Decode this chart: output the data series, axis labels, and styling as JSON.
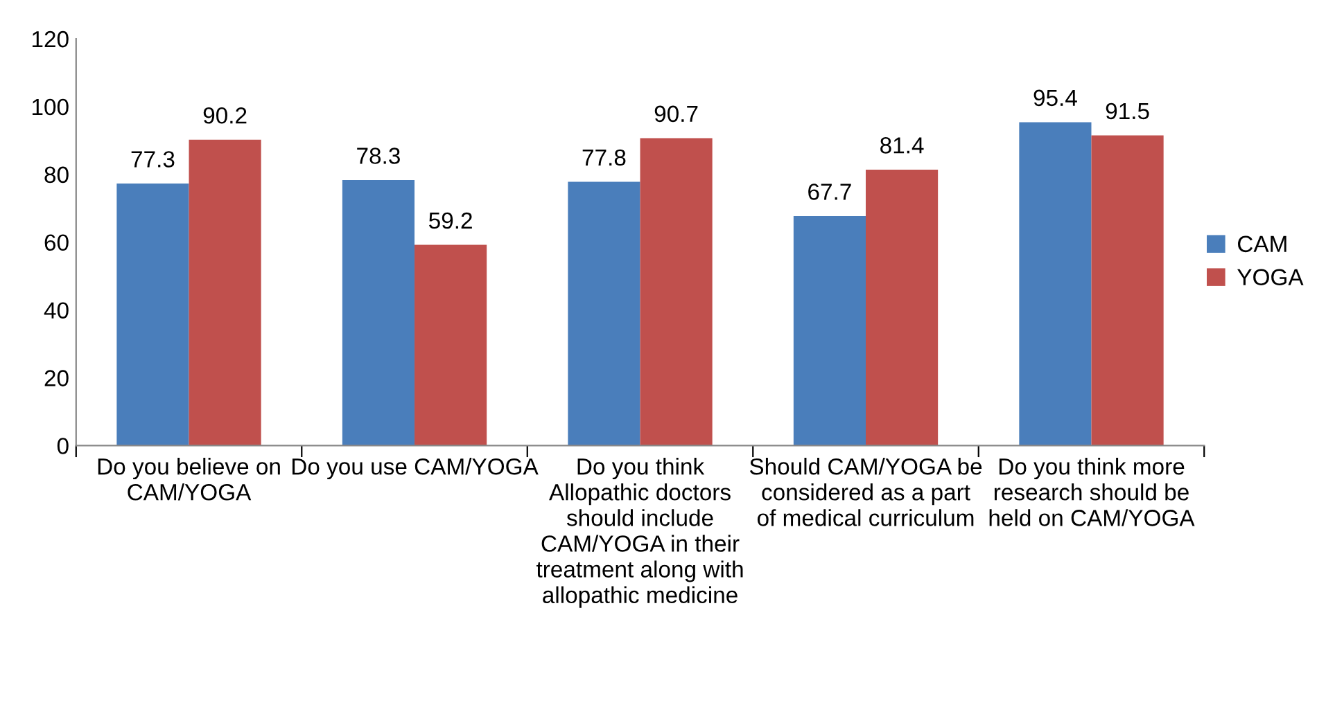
{
  "chart_data": {
    "type": "bar",
    "categories": [
      "Do you believe on CAM/YOGA",
      "Do you use CAM/YOGA",
      "Do you think Allopathic doctors should include CAM/YOGA in their treatment along with allopathic medicine",
      "Should CAM/YOGA be considered as a part of medical curriculum",
      "Do you think more research should be held on CAM/YOGA"
    ],
    "series": [
      {
        "name": "CAM",
        "color": "#4a7ebb",
        "values": [
          77.3,
          78.3,
          77.8,
          67.7,
          95.4
        ]
      },
      {
        "name": "YOGA",
        "color": "#c0504d",
        "values": [
          90.2,
          59.2,
          90.7,
          81.4,
          91.5
        ]
      }
    ],
    "ylim": [
      0,
      120
    ],
    "yticks": [
      0,
      20,
      40,
      60,
      80,
      100,
      120
    ],
    "data_labels": true,
    "legend": "right",
    "grid": false
  }
}
